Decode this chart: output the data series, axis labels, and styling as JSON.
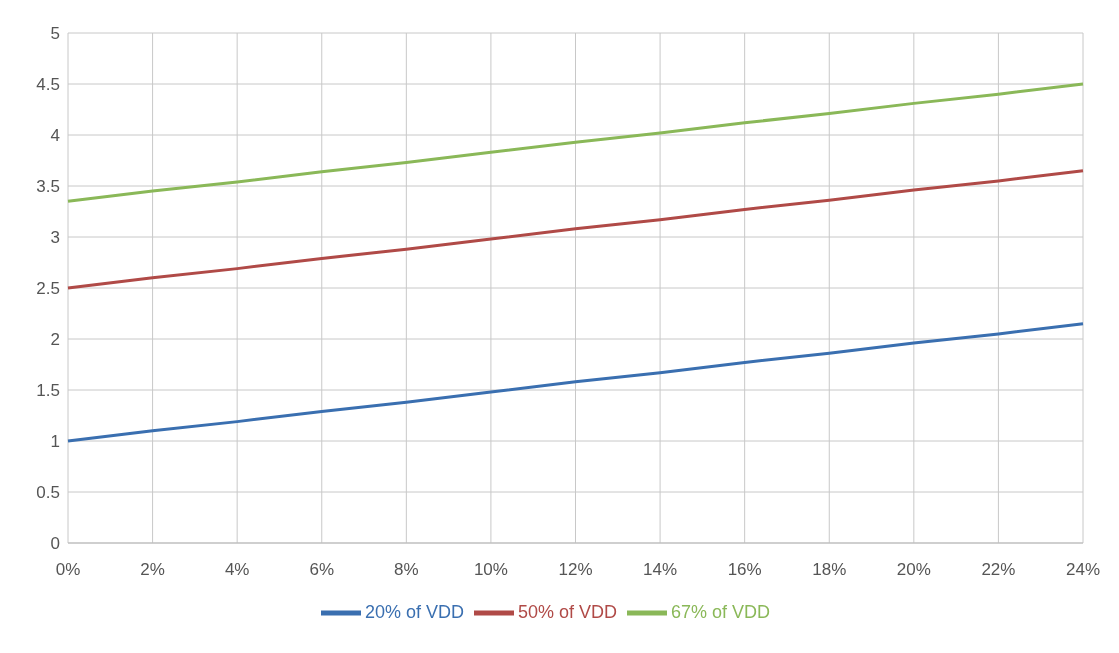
{
  "chart_data": {
    "type": "line",
    "categories": [
      "0%",
      "2%",
      "4%",
      "6%",
      "8%",
      "10%",
      "12%",
      "14%",
      "16%",
      "18%",
      "20%",
      "22%",
      "24%"
    ],
    "series": [
      {
        "name": "20% of VDD",
        "color": "#3a6fb0",
        "values": [
          1,
          1.1,
          1.19,
          1.29,
          1.38,
          1.48,
          1.58,
          1.67,
          1.77,
          1.86,
          1.96,
          2.05,
          2.15
        ]
      },
      {
        "name": "50% of VDD",
        "color": "#b04a47",
        "values": [
          2.5,
          2.6,
          2.69,
          2.79,
          2.88,
          2.98,
          3.08,
          3.17,
          3.27,
          3.36,
          3.46,
          3.55,
          3.65
        ]
      },
      {
        "name": "67% of VDD",
        "color": "#8ab858",
        "values": [
          3.35,
          3.45,
          3.54,
          3.64,
          3.73,
          3.83,
          3.93,
          4.02,
          4.12,
          4.21,
          4.31,
          4.4,
          4.5
        ]
      }
    ],
    "ylim": [
      0,
      5
    ],
    "yticks": [
      0,
      0.5,
      1,
      1.5,
      2,
      2.5,
      3,
      3.5,
      4,
      4.5,
      5
    ],
    "grid": true,
    "legend": "bottom",
    "marker": "none",
    "line_style": "solid"
  }
}
